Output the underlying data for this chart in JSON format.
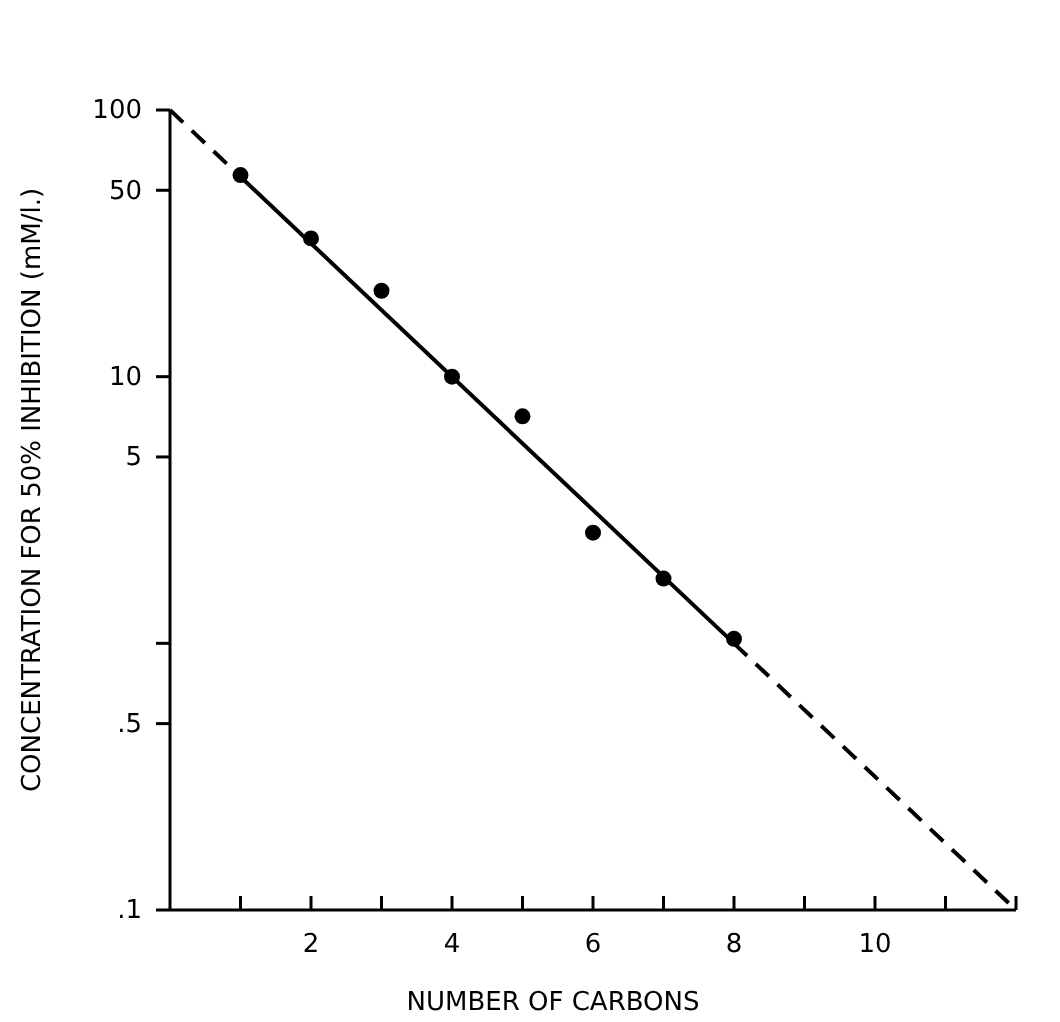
{
  "chart_data": {
    "type": "scatter",
    "xlabel": "NUMBER OF CARBONS",
    "ylabel": "CONCENTRATION FOR 50% INHIBITION (mM/l.)",
    "log": "y",
    "xlim": [
      0,
      12
    ],
    "xticks": [
      {
        "value": 1,
        "label": null
      },
      2,
      {
        "value": 3,
        "label": null
      },
      4,
      {
        "value": 5,
        "label": null
      },
      6,
      {
        "value": 7,
        "label": null
      },
      8,
      {
        "value": 9,
        "label": null
      },
      10,
      {
        "value": 11,
        "label": null
      },
      {
        "value": 12,
        "label": null
      }
    ],
    "ylim": [
      0.1,
      100
    ],
    "yticks": [
      {
        "value": 0.1,
        "label": ".1"
      },
      {
        "value": 0.5,
        "label": ".5"
      },
      {
        "value": 1,
        "label": null
      },
      5,
      10,
      50,
      100
    ],
    "series": [
      {
        "type": "scatter",
        "color": "#000000",
        "marker": "circle",
        "x": [
          1,
          2,
          3,
          4,
          5,
          6,
          7,
          8
        ],
        "values": [
          57,
          33,
          21,
          10,
          7.1,
          2.6,
          1.75,
          1.04
        ]
      },
      {
        "type": "line",
        "color": "#000000",
        "marker": "none",
        "line_style": "dashed",
        "x": [
          0,
          1
        ],
        "values": [
          100,
          56.2
        ]
      },
      {
        "type": "line",
        "color": "#000000",
        "marker": "none",
        "line_style": "solid",
        "x": [
          1,
          8
        ],
        "values": [
          56.2,
          1
        ]
      },
      {
        "type": "line",
        "color": "#000000",
        "marker": "none",
        "line_style": "dashed",
        "x": [
          8,
          12
        ],
        "values": [
          1,
          0.1
        ]
      }
    ]
  }
}
